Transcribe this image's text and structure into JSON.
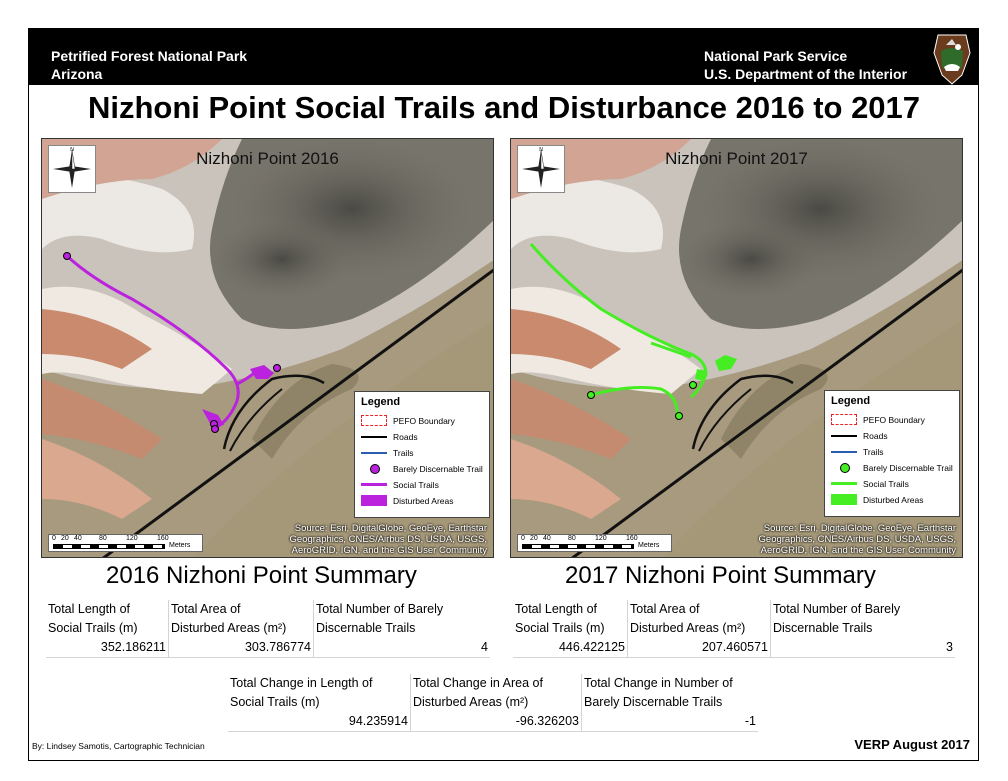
{
  "header": {
    "park_name": "Petrified Forest National Park",
    "state": "Arizona",
    "agency": "National Park Service",
    "department": "U.S. Department of the Interior",
    "badge_icon": "nps-arrowhead-icon"
  },
  "title": "Nizhoni Point Social Trails and Disturbance 2016 to 2017",
  "maps": [
    {
      "title": "Nizhoni Point 2016",
      "trail_color": "#bb22dd",
      "source": [
        "Source: Esri, DigitalGlobe, GeoEye, Earthstar",
        "Geographics, CNES/Airbus DS, USDA, USGS,",
        "AeroGRID, IGN, and the GIS User Community"
      ],
      "scale_ticks": [
        "0",
        "20",
        "40",
        "80",
        "120",
        "160"
      ],
      "scale_unit": "Meters"
    },
    {
      "title": "Nizhoni Point 2017",
      "trail_color": "#44ee22",
      "source": [
        "Source: Esri, DigitalGlobe, GeoEye, Earthstar",
        "Geographics, CNES/Airbus DS, USDA, USGS,",
        "AeroGRID, IGN, and the GIS User Community"
      ],
      "scale_ticks": [
        "0",
        "20",
        "40",
        "80",
        "120",
        "160"
      ],
      "scale_unit": "Meters"
    }
  ],
  "legend": {
    "title": "Legend",
    "items": [
      "PEFO Boundary",
      "Roads",
      "Trails",
      "Barely Discernable Trail",
      "Social Trails",
      "Disturbed Areas"
    ]
  },
  "summary_2016": {
    "title": "2016 Nizhoni Point Summary",
    "headers": [
      [
        "Total Length of",
        "Social Trails (m)"
      ],
      [
        "Total Area of",
        "Disturbed Areas (m²)"
      ],
      [
        "Total Number of Barely",
        "Discernable Trails"
      ]
    ],
    "values": [
      "352.186211",
      "303.786774",
      "4"
    ]
  },
  "summary_2017": {
    "title": "2017 Nizhoni Point Summary",
    "headers": [
      [
        "Total Length of",
        "Social Trails (m)"
      ],
      [
        "Total Area of",
        "Disturbed Areas (m²)"
      ],
      [
        "Total Number of Barely",
        "Discernable Trails"
      ]
    ],
    "values": [
      "446.422125",
      "207.460571",
      "3"
    ]
  },
  "change": {
    "headers": [
      [
        "Total Change in Length of",
        "Social Trails (m)"
      ],
      [
        "Total Change in Area of",
        "Disturbed Areas (m²)"
      ],
      [
        "Total Change in Number of",
        "Barely Discernable Trails"
      ]
    ],
    "values": [
      "94.235914",
      "-96.326203",
      "-1"
    ]
  },
  "footer": {
    "author": "By: Lindsey Samotis, Cartographic Technician",
    "date": "VERP August 2017"
  }
}
